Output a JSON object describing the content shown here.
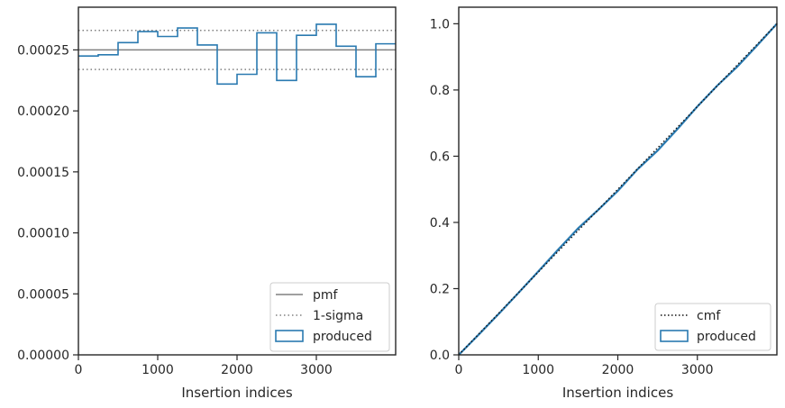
{
  "colors": {
    "produced": "#2a7ab0",
    "pmf": "#808080",
    "sigma": "#808080",
    "cmf": "#111111",
    "frame": "#262626"
  },
  "chart_data": [
    {
      "type": "step",
      "xlabel": "Insertion indices",
      "ylabel": "",
      "title": "",
      "xlim": [
        0,
        4000
      ],
      "ylim": [
        0,
        0.000285
      ],
      "xticks": [
        0,
        1000,
        2000,
        3000
      ],
      "xtick_labels": [
        "0",
        "1000",
        "2000",
        "3000"
      ],
      "yticks": [
        0,
        5e-05,
        0.0001,
        0.00015,
        0.0002,
        0.00025
      ],
      "ytick_labels": [
        "0.00000",
        "0.00005",
        "0.00010",
        "0.00015",
        "0.00020",
        "0.00025"
      ],
      "pmf": 0.00025,
      "sigma": [
        0.000234,
        0.000266
      ],
      "bins": [
        0,
        250,
        500,
        750,
        1000,
        1250,
        1500,
        1750,
        2000,
        2250,
        2500,
        2750,
        3000,
        3250,
        3500,
        3750,
        4000
      ],
      "produced": [
        0.000245,
        0.000246,
        0.000256,
        0.000265,
        0.000261,
        0.000268,
        0.000254,
        0.000222,
        0.00023,
        0.000264,
        0.000225,
        0.000262,
        0.000271,
        0.000253,
        0.000228,
        0.000255
      ],
      "legend": {
        "placement": "lower-right",
        "entries": [
          "pmf",
          "1-sigma",
          "produced"
        ]
      },
      "grid": false
    },
    {
      "type": "line",
      "xlabel": "Insertion indices",
      "ylabel": "",
      "title": "",
      "xlim": [
        0,
        4000
      ],
      "ylim": [
        0,
        1.05
      ],
      "xticks": [
        0,
        1000,
        2000,
        3000
      ],
      "xtick_labels": [
        "0",
        "1000",
        "2000",
        "3000"
      ],
      "yticks": [
        0,
        0.2,
        0.4,
        0.6,
        0.8,
        1.0
      ],
      "ytick_labels": [
        "0.0",
        "0.2",
        "0.4",
        "0.6",
        "0.8",
        "1.0"
      ],
      "cmf": {
        "x": [
          0,
          4000
        ],
        "y": [
          0,
          1
        ]
      },
      "produced": {
        "x": [
          0,
          250,
          500,
          750,
          1000,
          1250,
          1500,
          1750,
          2000,
          2250,
          2500,
          2750,
          3000,
          3250,
          3500,
          3750,
          4000
        ],
        "y": [
          0,
          0.061,
          0.123,
          0.187,
          0.252,
          0.318,
          0.382,
          0.437,
          0.495,
          0.561,
          0.617,
          0.682,
          0.75,
          0.813,
          0.87,
          0.934,
          1.0
        ]
      },
      "legend": {
        "placement": "lower-right",
        "entries": [
          "cmf",
          "produced"
        ]
      },
      "grid": false
    }
  ]
}
